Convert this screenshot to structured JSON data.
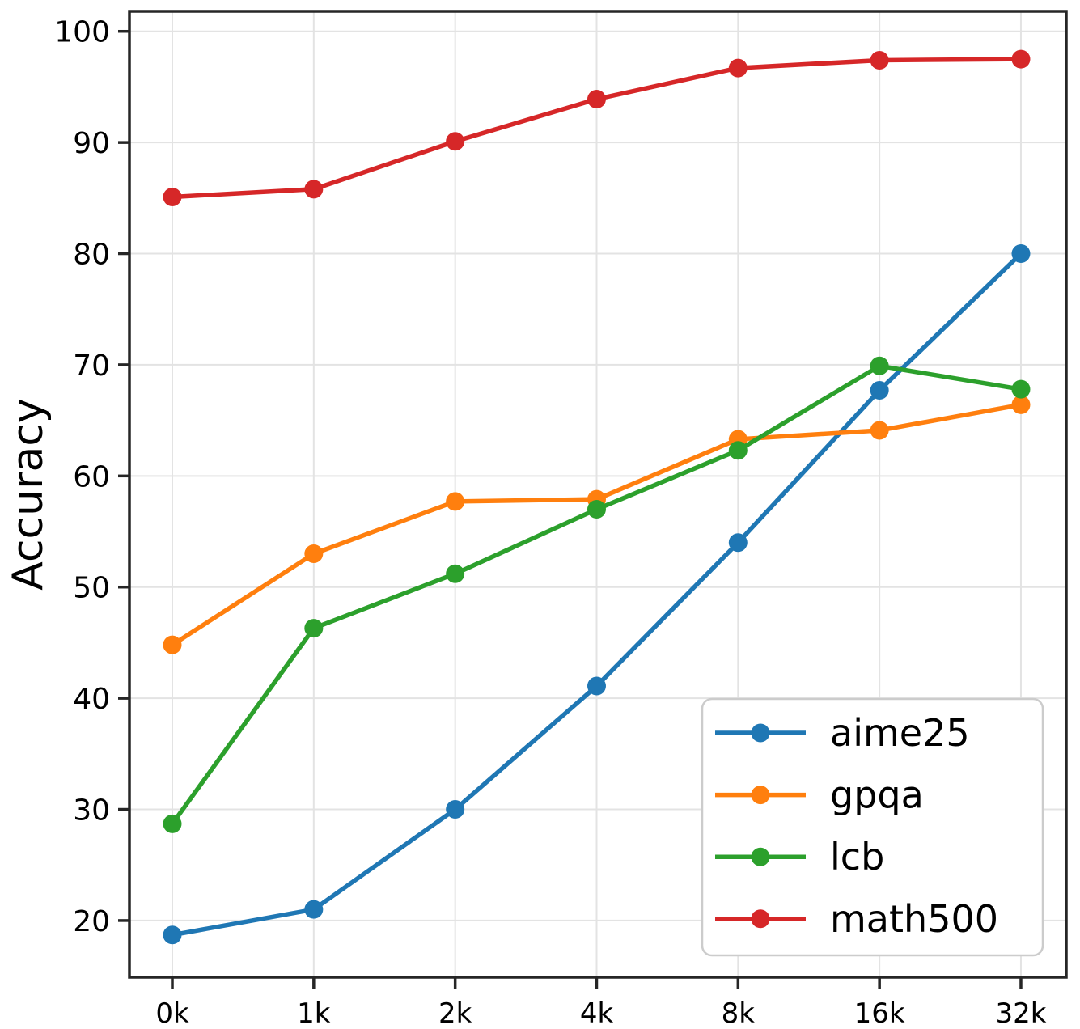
{
  "chart_data": {
    "type": "line",
    "title": "",
    "xlabel": "",
    "ylabel": "Accuracy",
    "categories": [
      "0k",
      "1k",
      "2k",
      "4k",
      "8k",
      "16k",
      "32k"
    ],
    "series": [
      {
        "name": "aime25",
        "color": "#1f77b4",
        "values": [
          18.7,
          21.0,
          30.0,
          41.1,
          54.0,
          67.7,
          80.0
        ]
      },
      {
        "name": "gpqa",
        "color": "#ff7f0e",
        "values": [
          44.8,
          53.0,
          57.7,
          57.9,
          63.3,
          64.1,
          66.4
        ]
      },
      {
        "name": "lcb",
        "color": "#2ca02c",
        "values": [
          28.7,
          46.3,
          51.2,
          57.0,
          62.3,
          69.9,
          67.8
        ]
      },
      {
        "name": "math500",
        "color": "#d62728",
        "values": [
          85.1,
          85.8,
          90.1,
          93.9,
          96.7,
          97.4,
          97.5
        ]
      }
    ],
    "y_ticks": [
      20,
      30,
      40,
      50,
      60,
      70,
      80,
      90,
      100
    ],
    "ylim": [
      14.9,
      101.8
    ],
    "grid": true,
    "legend_position": "lower right",
    "marker": "circle"
  },
  "styles": {
    "background": "#ffffff",
    "grid_color": "#e3e3e3",
    "spine_color": "#262626",
    "text_color": "#000000",
    "legend_border_color": "#cccccc",
    "legend_background": "#ffffff"
  }
}
